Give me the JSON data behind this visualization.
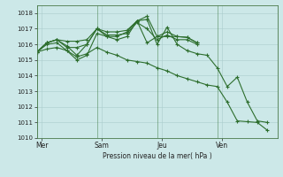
{
  "background_color": "#cce8e8",
  "grid_color": "#aacccc",
  "line_color": "#2d6e2d",
  "xlabel_text": "Pression niveau de la mer( hPa )",
  "ylim": [
    1010,
    1018.5
  ],
  "yticks": [
    1010,
    1011,
    1012,
    1013,
    1014,
    1015,
    1016,
    1017,
    1018
  ],
  "day_labels": [
    "Mer",
    "Sam",
    "Jeu",
    "Ven"
  ],
  "day_positions": [
    0.5,
    6.5,
    12.5,
    18.5
  ],
  "vline_positions": [
    0,
    6,
    12,
    18,
    24
  ],
  "xlim": [
    0,
    24
  ],
  "line1_x": [
    0,
    1,
    2,
    3,
    4,
    5,
    6,
    7,
    8,
    9,
    10,
    11,
    12,
    13,
    14,
    15,
    16
  ],
  "line1_y": [
    1015.5,
    1016.1,
    1016.3,
    1015.9,
    1015.3,
    1016.0,
    1017.0,
    1016.8,
    1016.8,
    1016.9,
    1017.5,
    1017.8,
    1016.5,
    1016.8,
    1016.5,
    1016.45,
    1016.1
  ],
  "line2_x": [
    0,
    1,
    2,
    3,
    4,
    5,
    6,
    7,
    8,
    9,
    10,
    11,
    12,
    13,
    14,
    15,
    16
  ],
  "line2_y": [
    1015.5,
    1016.1,
    1016.3,
    1016.2,
    1016.2,
    1016.3,
    1017.0,
    1016.5,
    1016.3,
    1016.5,
    1017.5,
    1016.1,
    1016.5,
    1016.5,
    1016.5,
    1016.45,
    1016.1
  ],
  "line3_x": [
    0,
    1,
    2,
    3,
    4,
    5,
    6,
    7,
    8,
    9,
    10,
    11,
    12,
    13,
    14,
    15,
    16
  ],
  "line3_y": [
    1015.5,
    1016.1,
    1016.3,
    1015.8,
    1015.8,
    1016.0,
    1017.0,
    1016.6,
    1016.6,
    1016.7,
    1017.4,
    1017.0,
    1016.3,
    1016.6,
    1016.3,
    1016.3,
    1016.0
  ],
  "line4_x": [
    0,
    1,
    2,
    3,
    4,
    5,
    6,
    7,
    8,
    9,
    10,
    11,
    12,
    13,
    14,
    15,
    16,
    17,
    18,
    19,
    20,
    21,
    22,
    23
  ],
  "line4_y": [
    1015.5,
    1016.0,
    1016.1,
    1015.6,
    1015.0,
    1015.3,
    1016.7,
    1016.5,
    1016.5,
    1016.8,
    1017.5,
    1017.6,
    1016.0,
    1017.1,
    1016.0,
    1015.6,
    1015.4,
    1015.3,
    1014.5,
    1013.3,
    1013.9,
    1012.3,
    1011.1,
    1011.0
  ],
  "line5_x": [
    0,
    1,
    2,
    3,
    4,
    5,
    6,
    7,
    8,
    9,
    10,
    11,
    12,
    13,
    14,
    15,
    16,
    17,
    18,
    19,
    20,
    21,
    22,
    23
  ],
  "line5_y": [
    1015.5,
    1015.7,
    1015.8,
    1015.6,
    1015.2,
    1015.4,
    1015.8,
    1015.5,
    1015.3,
    1015.0,
    1014.9,
    1014.8,
    1014.5,
    1014.3,
    1014.0,
    1013.8,
    1013.6,
    1013.4,
    1013.3,
    1012.3,
    1011.1,
    1011.05,
    1011.0,
    1010.5
  ]
}
